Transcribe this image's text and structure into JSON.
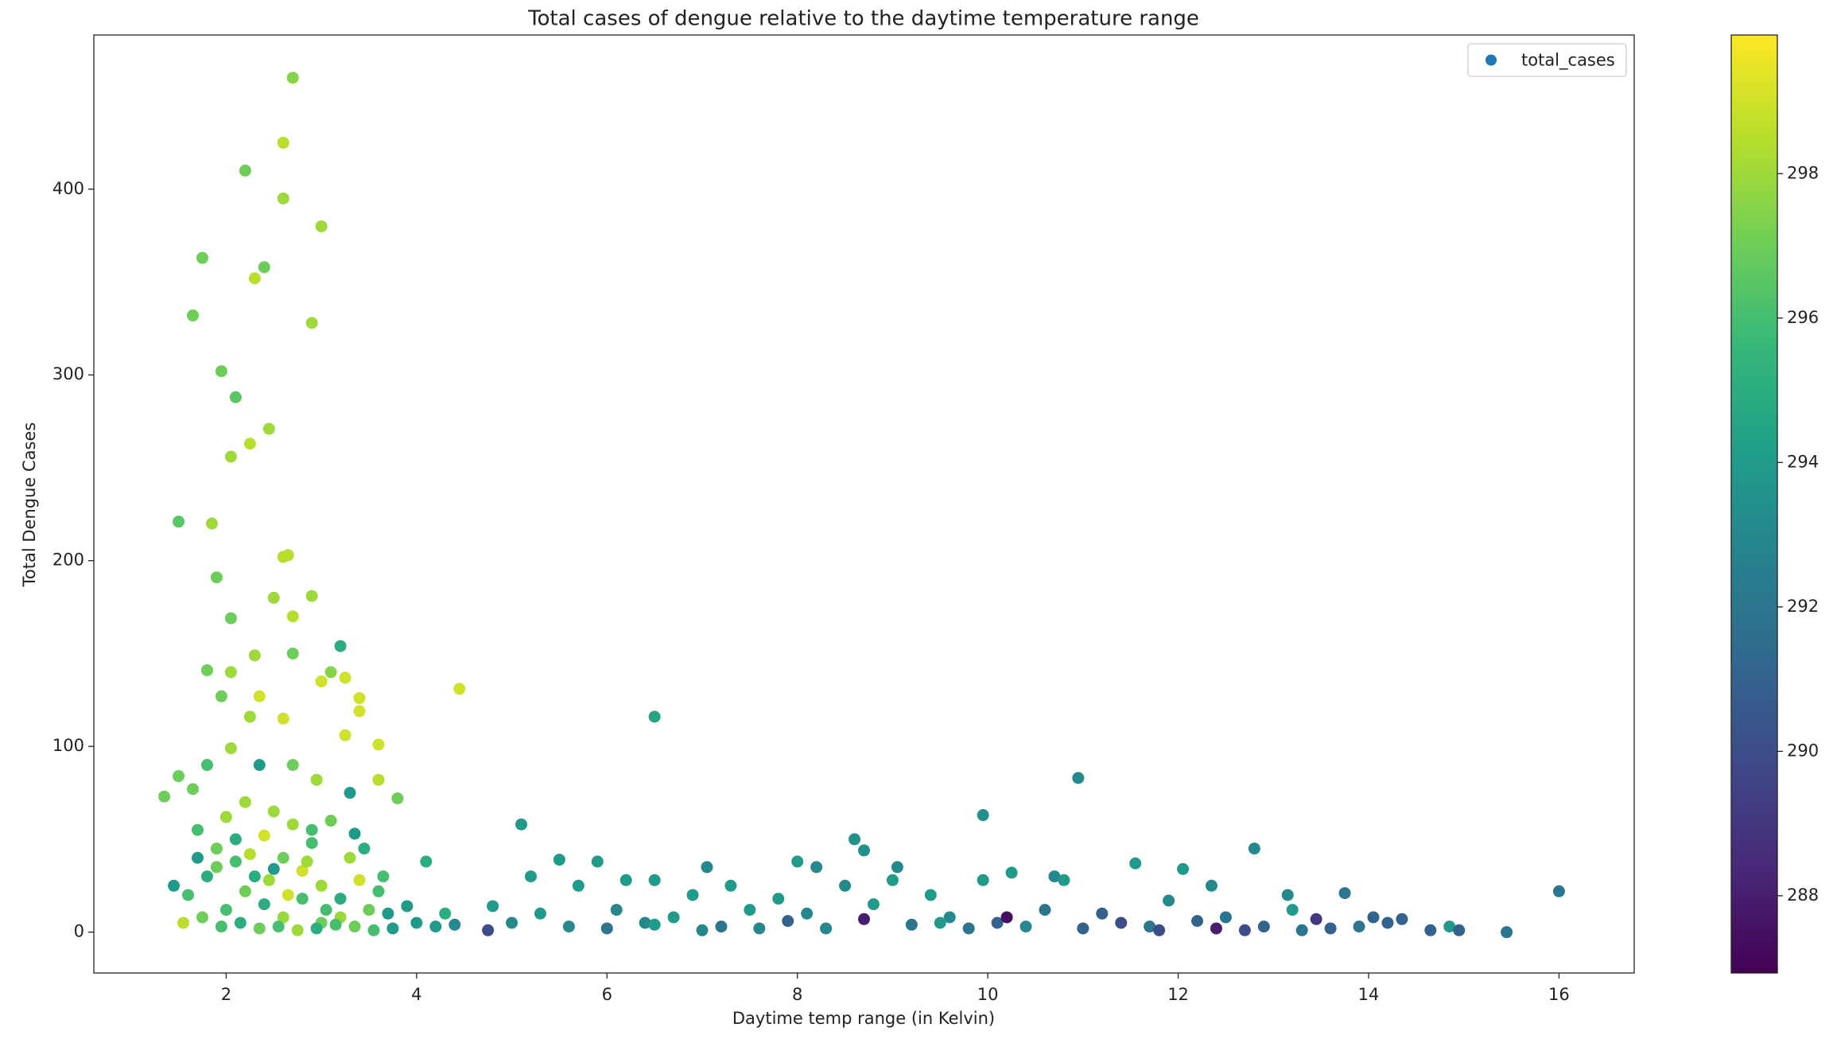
{
  "chart_data": {
    "type": "scatter",
    "title": "Total cases of dengue relative to the daytime temperature range",
    "xlabel": "Daytime temp range (in Kelvin)",
    "ylabel": "Total Dengue Cases",
    "xlim": [
      0.61,
      16.79
    ],
    "ylim": [
      -22,
      483
    ],
    "xticks": [
      2,
      4,
      6,
      8,
      10,
      12,
      14,
      16
    ],
    "yticks": [
      0,
      100,
      200,
      300,
      400
    ],
    "colormap": "viridis",
    "clim": [
      286.93,
      299.92
    ],
    "cticks": [
      288,
      290,
      292,
      294,
      296,
      298
    ],
    "legend": "upper right",
    "x": [
      2.7,
      2.6,
      2.2,
      2.6,
      3.0,
      1.75,
      2.4,
      2.3,
      1.65,
      2.9,
      1.95,
      2.1,
      2.45,
      2.25,
      2.05,
      1.5,
      1.85,
      2.6,
      2.65,
      1.9,
      2.5,
      2.9,
      2.05,
      2.7,
      3.2,
      2.7,
      2.3,
      1.8,
      2.05,
      3.1,
      3.0,
      3.25,
      4.45,
      1.95,
      2.35,
      3.4,
      2.25,
      2.6,
      3.4,
      3.25,
      6.5,
      3.6,
      2.05,
      1.35,
      1.5,
      1.65,
      1.8,
      2.35,
      2.7,
      2.95,
      3.6,
      3.3,
      3.8,
      10.95,
      9.95,
      5.1,
      8.6,
      12.8,
      8.7,
      1.7,
      1.9,
      2.0,
      2.1,
      2.2,
      2.3,
      2.4,
      2.5,
      2.6,
      2.7,
      2.8,
      2.9,
      3.0,
      3.1,
      3.2,
      3.3,
      3.4,
      3.5,
      3.6,
      3.7,
      1.6,
      1.8,
      2.0,
      2.2,
      2.4,
      2.6,
      2.8,
      3.0,
      3.2,
      1.45,
      1.55,
      1.75,
      1.95,
      2.15,
      2.35,
      2.55,
      2.75,
      2.95,
      3.15,
      3.35,
      3.55,
      3.75,
      1.9,
      2.25,
      2.45,
      2.65,
      2.85,
      3.05,
      3.45,
      1.7,
      2.1,
      2.5,
      2.9,
      3.65,
      3.35,
      3.9,
      4.0,
      4.1,
      4.2,
      4.3,
      4.4,
      4.75,
      4.8,
      5.0,
      5.2,
      5.3,
      5.5,
      5.6,
      5.7,
      5.9,
      6.0,
      6.1,
      6.2,
      6.4,
      6.5,
      6.7,
      6.9,
      7.05,
      7.2,
      7.3,
      7.5,
      7.6,
      7.8,
      7.9,
      8.0,
      8.1,
      8.2,
      8.3,
      8.5,
      8.7,
      8.8,
      9.0,
      9.05,
      9.2,
      9.4,
      9.6,
      9.8,
      9.95,
      10.1,
      10.2,
      10.25,
      10.4,
      10.6,
      10.7,
      10.8,
      11.0,
      11.2,
      11.4,
      11.55,
      11.7,
      11.9,
      12.05,
      12.2,
      12.35,
      12.5,
      12.7,
      12.9,
      13.15,
      13.2,
      13.3,
      13.45,
      13.6,
      13.75,
      13.9,
      14.05,
      14.2,
      14.35,
      14.65,
      14.85,
      14.95,
      15.45,
      16.0,
      6.5,
      7.0,
      9.5,
      11.8,
      12.4
    ],
    "series": [
      {
        "name": "total_cases",
        "color": "#1f77b4",
        "values": [
          460,
          425,
          410,
          395,
          380,
          363,
          358,
          352,
          332,
          328,
          302,
          288,
          271,
          263,
          256,
          221,
          220,
          202,
          203,
          191,
          180,
          181,
          169,
          170,
          154,
          150,
          149,
          141,
          140,
          140,
          135,
          137,
          131,
          127,
          127,
          126,
          116,
          115,
          119,
          106,
          116,
          101,
          99,
          73,
          84,
          77,
          90,
          90,
          90,
          82,
          82,
          75,
          72,
          83,
          63,
          58,
          50,
          45,
          44,
          55,
          45,
          62,
          38,
          70,
          30,
          52,
          65,
          40,
          58,
          33,
          48,
          25,
          60,
          18,
          40,
          28,
          12,
          22,
          10,
          20,
          30,
          12,
          22,
          15,
          8,
          18,
          5,
          8,
          25,
          5,
          8,
          3,
          5,
          2,
          3,
          1,
          2,
          4,
          3,
          1,
          2,
          35,
          42,
          28,
          20,
          38,
          12,
          45,
          40,
          50,
          34,
          55,
          30,
          53,
          14,
          5,
          38,
          3,
          10,
          4,
          1,
          14,
          5,
          30,
          10,
          39,
          3,
          25,
          38,
          2,
          12,
          28,
          5,
          28,
          8,
          20,
          35,
          3,
          25,
          12,
          2,
          18,
          6,
          38,
          10,
          35,
          2,
          25,
          7,
          15,
          28,
          35,
          4,
          20,
          8,
          2,
          28,
          5,
          8,
          32,
          3,
          12,
          30,
          28,
          2,
          10,
          5,
          37,
          3,
          17,
          34,
          6,
          25,
          8,
          1,
          3,
          20,
          12,
          1,
          7,
          2,
          21,
          3,
          8,
          5,
          7,
          1,
          3,
          1,
          0,
          22,
          4,
          1,
          5,
          1,
          2
        ],
        "c": [
          297.5,
          298.5,
          297,
          298,
          298,
          297,
          297,
          298.5,
          297,
          298,
          297,
          296.5,
          298,
          298.5,
          298,
          296.5,
          298,
          298.5,
          298.5,
          297,
          298,
          298,
          297,
          298.5,
          295,
          297,
          298,
          297,
          298,
          297.5,
          299,
          299,
          299,
          297,
          299,
          299,
          298,
          299,
          299,
          299,
          294.5,
          299,
          298,
          297,
          297,
          297,
          296,
          294,
          297,
          298,
          298.5,
          294,
          297,
          293,
          293.5,
          294,
          293.5,
          293,
          293.5,
          296,
          297,
          298,
          296,
          298,
          295,
          299,
          298,
          297,
          298,
          299,
          296,
          298,
          297,
          295,
          298,
          299,
          297,
          296,
          294,
          296,
          295,
          296,
          297,
          295,
          298,
          296,
          297,
          298,
          294,
          298.5,
          297,
          296,
          295,
          297,
          296,
          298,
          295,
          296,
          297,
          296,
          294,
          297,
          298.5,
          298,
          299,
          298,
          296,
          295,
          294,
          295,
          294,
          296,
          296,
          294,
          294,
          294,
          295,
          294,
          295,
          293,
          290,
          294,
          293,
          294,
          294,
          294,
          293,
          294,
          294,
          292,
          293,
          294,
          293,
          294,
          294,
          294,
          293,
          292,
          294,
          294,
          293,
          294,
          291,
          294,
          293,
          293,
          293,
          293,
          288,
          294,
          294,
          293,
          292,
          294,
          293,
          292,
          294,
          291,
          287.5,
          294,
          293,
          292,
          293,
          294,
          291,
          291,
          290,
          294,
          292,
          293,
          294,
          291,
          293,
          292,
          290,
          291,
          293,
          294,
          292,
          289,
          291,
          292,
          292,
          291,
          291,
          291,
          291,
          294,
          291,
          292,
          292,
          294,
          293,
          294,
          290,
          288
        ]
      }
    ]
  }
}
